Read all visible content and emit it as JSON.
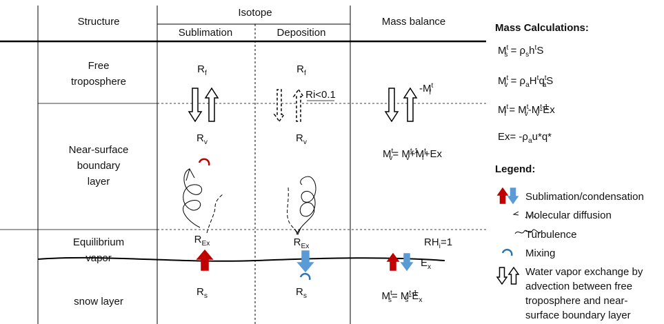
{
  "table": {
    "header": {
      "structure": "Structure",
      "isotope": "Isotope",
      "sublimation": "Sublimation",
      "deposition": "Deposition",
      "mass_balance": "Mass balance"
    },
    "structure": [
      [
        "Free",
        "troposphere"
      ],
      [
        "Near-surface",
        "boundary",
        "layer"
      ],
      [
        "Equilibrium",
        "vapor"
      ],
      [
        "snow layer"
      ]
    ],
    "sublimation": [
      [
        {
          "text": "R",
          "sub": "f"
        }
      ],
      [
        {
          "text": "R",
          "sub": "v"
        }
      ],
      [
        {
          "text": "R",
          "sub": "Ex"
        }
      ],
      [
        {
          "text": "R",
          "sub": "s"
        }
      ]
    ],
    "deposition": [
      [
        {
          "text": "R",
          "sub": "f"
        }
      ],
      [
        {
          "text": "R",
          "sub": "v"
        }
      ],
      [
        {
          "text": "R",
          "sub": "Ex"
        }
      ],
      [
        {
          "text": "R",
          "sub": "s"
        }
      ]
    ],
    "deposition_note": "Ri<0.1",
    "mass_balance": {
      "advection": [
        {
          "text": "-M",
          "sup": "t",
          "sub": "f"
        }
      ],
      "vapor": [
        {
          "text": "M",
          "sup": "t",
          "sub": "v"
        },
        {
          "text": "= M",
          "sup": "t-1",
          "sub": "v"
        },
        {
          "text": "+M",
          "sup": "t",
          "sub": "f"
        },
        {
          "text": "+Ex"
        }
      ],
      "saturation": [
        {
          "text": "RH",
          "sub": "i"
        },
        {
          "text": "=1"
        }
      ],
      "exchange": [
        {
          "text": "E",
          "sub": "x"
        }
      ],
      "snow": [
        {
          "text": "M",
          "sup": "t",
          "sub": "s"
        },
        {
          "text": "= M",
          "sup": "t-1",
          "sub": "s"
        },
        {
          "text": "-E",
          "sub": "x"
        }
      ]
    }
  },
  "mass_calculations": {
    "title": "Mass Calculations:",
    "equations": [
      [
        {
          "text": "M",
          "sup": "t",
          "sub": "s"
        },
        {
          "text": " = ρ",
          "sub": "s"
        },
        {
          "text": "h",
          "sup": "t"
        },
        {
          "text": "S"
        }
      ],
      [
        {
          "text": "M",
          "sup": "t",
          "sub": "v"
        },
        {
          "text": " = ρ",
          "sub": "a"
        },
        {
          "text": "H",
          "sup": "t"
        },
        {
          "text": "q",
          "sup": "t",
          "sub": "a"
        },
        {
          "text": "S"
        }
      ],
      [
        {
          "text": "M",
          "sup": "t",
          "sub": "f"
        },
        {
          "text": " = M",
          "sup": "t",
          "sub": "v"
        },
        {
          "text": "-M",
          "sup": "t-1",
          "sub": "v"
        },
        {
          "text": "-Ex"
        }
      ],
      [
        {
          "text": "Ex= -ρ",
          "sub": "a"
        },
        {
          "text": "u*q*"
        }
      ]
    ]
  },
  "legend": {
    "title": "Legend:",
    "items": [
      [
        "Sublimation/condensation"
      ],
      [
        "Molecular diffusion"
      ],
      [
        "Turbulence"
      ],
      [
        "Mixing"
      ],
      [
        "Water vapor exchange by",
        "advection between free",
        "troposphere and near-",
        "surface boundary layer"
      ]
    ]
  }
}
